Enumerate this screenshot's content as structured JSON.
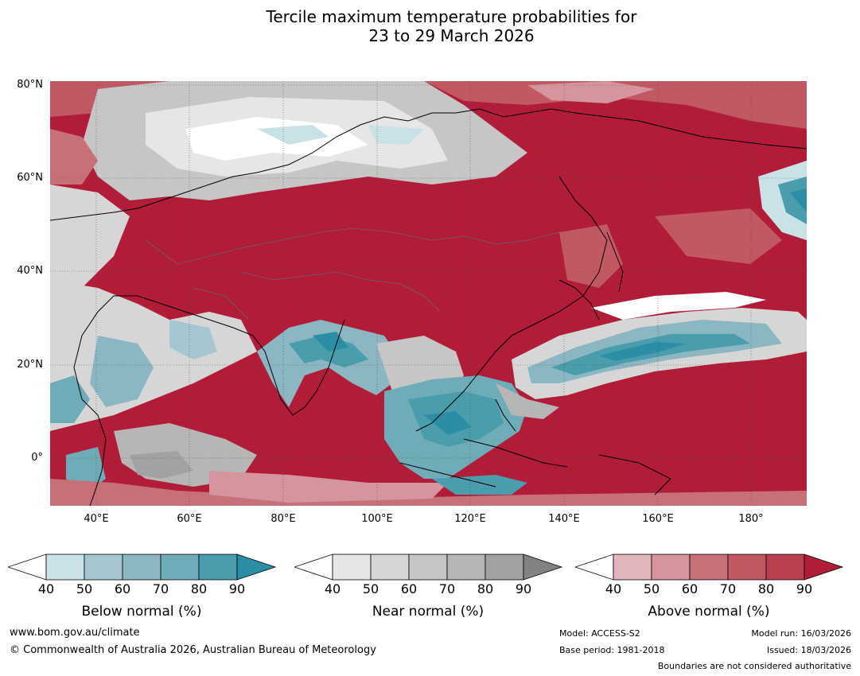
{
  "title": {
    "line1": "Tercile maximum temperature probabilities for",
    "line2": "23 to 29 March 2026"
  },
  "map": {
    "region": "Asia and western Pacific",
    "lat_labels": [
      "80°N",
      "60°N",
      "40°N",
      "20°N",
      "0°"
    ],
    "lon_labels": [
      "40°E",
      "60°E",
      "80°E",
      "100°E",
      "120°E",
      "140°E",
      "160°E",
      "180°"
    ]
  },
  "legends": {
    "below": {
      "title": "Below normal (%)",
      "ticks": [
        "40",
        "50",
        "60",
        "70",
        "80",
        "90"
      ],
      "colors": [
        "#ffffff",
        "#c9e2e8",
        "#a6c7cf",
        "#8ab7c2",
        "#6eacb8",
        "#4a9dad",
        "#2b8ea5"
      ]
    },
    "near": {
      "title": "Near normal (%)",
      "ticks": [
        "40",
        "50",
        "60",
        "70",
        "80",
        "90"
      ],
      "colors": [
        "#ffffff",
        "#e6e6e6",
        "#d6d6d6",
        "#c6c6c6",
        "#b6b6b6",
        "#a2a2a2",
        "#828282"
      ]
    },
    "above": {
      "title": "Above normal (%)",
      "ticks": [
        "40",
        "50",
        "60",
        "70",
        "80",
        "90"
      ],
      "colors": [
        "#ffffff",
        "#e0b6bb",
        "#d4959c",
        "#c87079",
        "#c25864",
        "#b9404f",
        "#b11c38"
      ]
    }
  },
  "footer": {
    "website": "www.bom.gov.au/climate",
    "copyright": "© Commonwealth of Australia 2026, Australian Bureau of Meteorology",
    "model": "Model: ACCESS-S2",
    "base_period": "Base period: 1981-2018",
    "model_run": "Model run: 16/03/2026",
    "issued": "Issued: 18/03/2026",
    "disclaimer": "Boundaries are not considered authoritative"
  }
}
